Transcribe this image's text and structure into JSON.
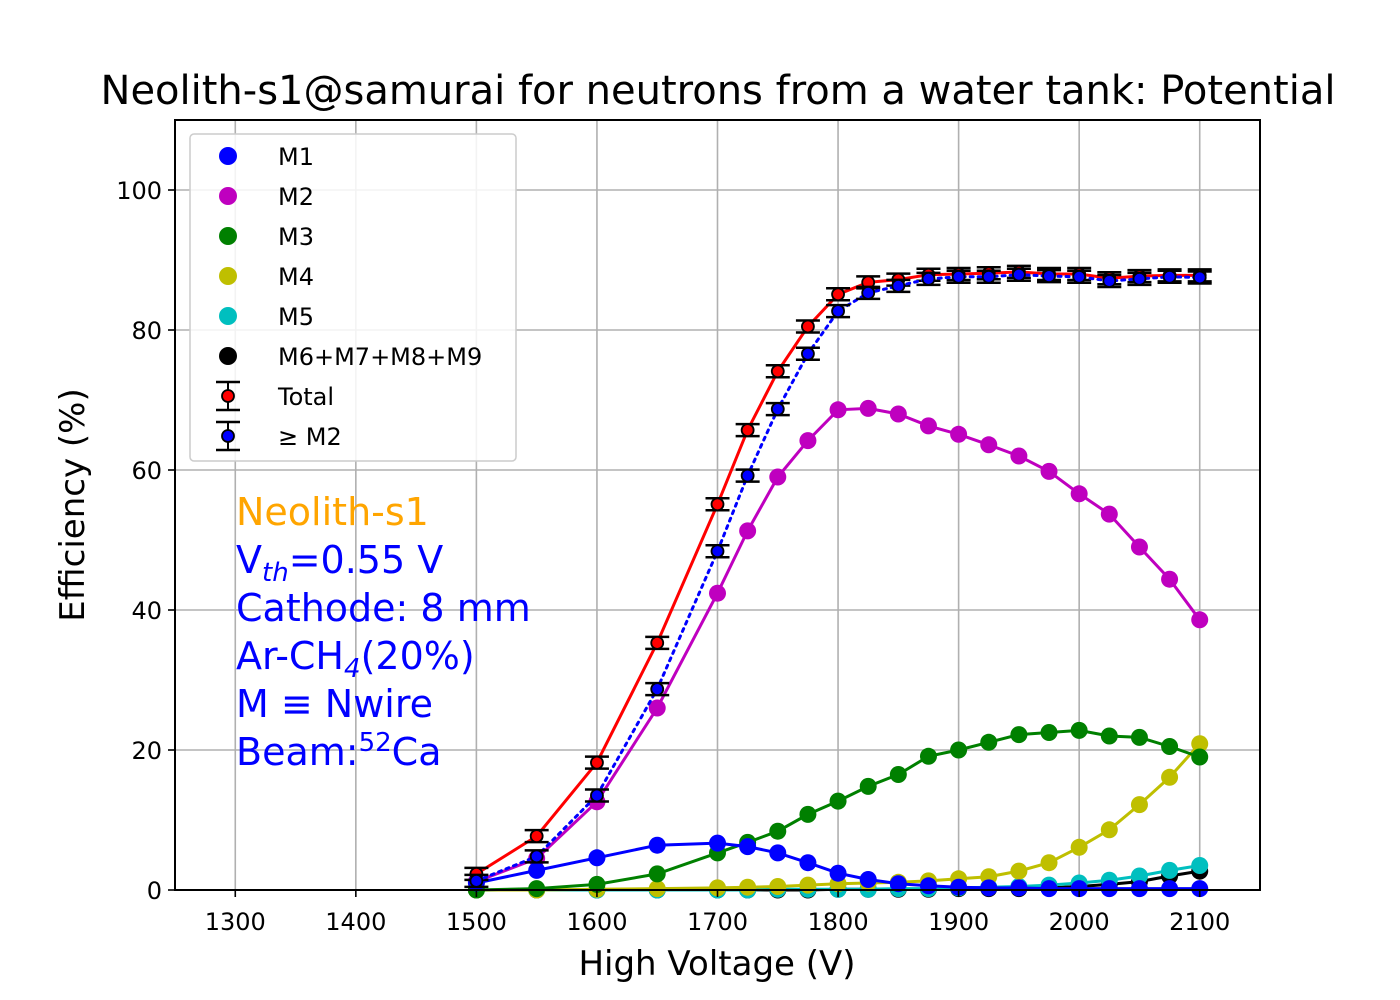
{
  "chart_data": {
    "type": "line",
    "title": "Neolith-s1@samurai for neutrons from a water tank: Potential",
    "xlabel": "High Voltage (V)",
    "ylabel": "Efficiency (%)",
    "xlim": [
      1250,
      2150
    ],
    "ylim": [
      0,
      110
    ],
    "xticks": [
      "1300",
      "1400",
      "1500",
      "1600",
      "1700",
      "1800",
      "1900",
      "2000",
      "2100"
    ],
    "yticks": [
      "0",
      "20",
      "40",
      "60",
      "80",
      "100"
    ],
    "grid": true,
    "legend_position": "top-left",
    "x": [
      1500,
      1550,
      1600,
      1650,
      1700,
      1725,
      1750,
      1775,
      1800,
      1825,
      1850,
      1875,
      1900,
      1925,
      1950,
      1975,
      2000,
      2025,
      2050,
      2075,
      2100
    ],
    "series": [
      {
        "name": "M1",
        "color": "#0000ff",
        "line": "solid",
        "values": [
          1.0,
          2.8,
          4.6,
          6.4,
          6.7,
          6.2,
          5.3,
          3.9,
          2.4,
          1.5,
          0.9,
          0.6,
          0.4,
          0.3,
          0.3,
          0.2,
          0.2,
          0.2,
          0.2,
          0.2,
          0.2
        ]
      },
      {
        "name": "M2",
        "color": "#bf00bf",
        "line": "solid",
        "values": [
          1.2,
          4.5,
          12.6,
          26.0,
          42.4,
          51.3,
          59.0,
          64.2,
          68.6,
          68.8,
          68.0,
          66.3,
          65.1,
          63.6,
          62.0,
          59.8,
          56.6,
          53.7,
          49.0,
          44.4,
          38.6
        ]
      },
      {
        "name": "M3",
        "color": "#008000",
        "line": "solid",
        "values": [
          0.0,
          0.2,
          0.8,
          2.3,
          5.3,
          6.8,
          8.4,
          10.8,
          12.7,
          14.8,
          16.5,
          19.1,
          20.0,
          21.1,
          22.2,
          22.5,
          22.8,
          22.0,
          21.8,
          20.5,
          19.0
        ]
      },
      {
        "name": "M4",
        "color": "#bfbf00",
        "line": "solid",
        "values": [
          0.0,
          0.0,
          0.1,
          0.2,
          0.3,
          0.4,
          0.5,
          0.7,
          0.9,
          1.0,
          1.1,
          1.3,
          1.6,
          1.9,
          2.7,
          3.9,
          6.1,
          8.6,
          12.2,
          16.1,
          20.9
        ]
      },
      {
        "name": "M5",
        "color": "#00bfbf",
        "line": "solid",
        "values": [
          0.0,
          0.0,
          0.0,
          0.0,
          0.0,
          0.0,
          0.1,
          0.1,
          0.1,
          0.1,
          0.2,
          0.2,
          0.3,
          0.4,
          0.5,
          0.7,
          1.0,
          1.4,
          2.0,
          2.8,
          3.5
        ]
      },
      {
        "name": "M6+M7+M8+M9",
        "color": "#000000",
        "line": "solid",
        "values": [
          0.0,
          0.0,
          0.0,
          0.0,
          0.0,
          0.0,
          0.0,
          0.0,
          0.1,
          0.1,
          0.1,
          0.1,
          0.2,
          0.2,
          0.2,
          0.3,
          0.5,
          0.8,
          1.2,
          2.0,
          2.7
        ]
      },
      {
        "name": "Total",
        "color": "#ff0000",
        "line": "solid",
        "errorbars": true,
        "values": [
          2.3,
          7.7,
          18.2,
          35.3,
          55.1,
          65.7,
          74.1,
          80.5,
          85.1,
          86.8,
          87.2,
          87.9,
          88.0,
          88.1,
          88.3,
          88.0,
          88.0,
          87.4,
          87.7,
          87.8,
          87.8
        ]
      },
      {
        "name": "≥ M2",
        "color": "#0000ff",
        "line": "dotted",
        "errorbars": true,
        "values": [
          1.3,
          4.8,
          13.5,
          28.7,
          48.4,
          59.2,
          68.7,
          76.6,
          82.7,
          85.3,
          86.3,
          87.3,
          87.6,
          87.6,
          87.9,
          87.7,
          87.6,
          87.0,
          87.3,
          87.6,
          87.5
        ]
      }
    ],
    "annotations": [
      {
        "text": "Neolith-s1",
        "color": "#ffa500"
      },
      {
        "text": "V",
        "sub": "th",
        "rest": "=0.55 V",
        "color": "#0000ff"
      },
      {
        "text": "Cathode: 8 mm",
        "color": "#0000ff"
      },
      {
        "text": "Ar-CH",
        "sub": "4",
        "rest": "(20%)",
        "color": "#0000ff"
      },
      {
        "text": "M ≡ Nwire",
        "color": "#0000ff"
      },
      {
        "text": "Beam:",
        "sup": "52",
        "rest": "Ca",
        "color": "#0000ff"
      }
    ]
  }
}
